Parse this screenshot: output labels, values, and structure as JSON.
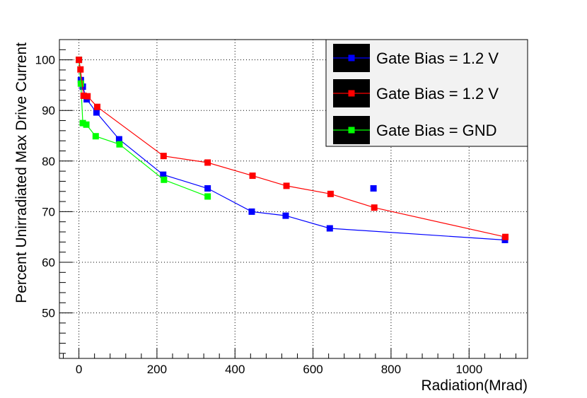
{
  "chart_data": {
    "type": "line",
    "title": "",
    "xlabel": "Radiation(Mrad)",
    "ylabel": "Percent Unirradiated Max Drive Current",
    "xlim": [
      -50,
      1150
    ],
    "ylim": [
      41,
      104
    ],
    "x_ticks": [
      0,
      200,
      400,
      600,
      800,
      1000
    ],
    "y_ticks": [
      50,
      60,
      70,
      80,
      90,
      100
    ],
    "grid": true,
    "legend_position": "top-right",
    "series": [
      {
        "name": "Gate Bias = 1.2 V",
        "color": "#0000ff",
        "x": [
          0,
          5,
          10,
          20,
          45,
          103,
          216,
          330,
          443,
          530,
          643,
          1092
        ],
        "y": [
          100,
          96,
          94.7,
          92.2,
          89.6,
          84.3,
          77.3,
          74.6,
          70,
          69.2,
          66.7,
          64.4
        ],
        "extra_points": {
          "x": [
            755
          ],
          "y": [
            74.6
          ]
        }
      },
      {
        "name": "Gate Bias = 1.2 V",
        "color": "#ff0000",
        "x": [
          0,
          4,
          12,
          22,
          47,
          217,
          330,
          445,
          532,
          645,
          757,
          1093
        ],
        "y": [
          100,
          98.1,
          92.9,
          92.8,
          90.7,
          81,
          79.7,
          77.1,
          75.1,
          73.5,
          70.8,
          65
        ]
      },
      {
        "name": "Gate Bias = GND",
        "color": "#00ff00",
        "x": [
          0,
          5,
          10,
          19,
          43,
          104,
          218,
          330
        ],
        "y": [
          100,
          95.3,
          87.5,
          87.2,
          84.9,
          83.3,
          76.3,
          73
        ]
      }
    ]
  }
}
